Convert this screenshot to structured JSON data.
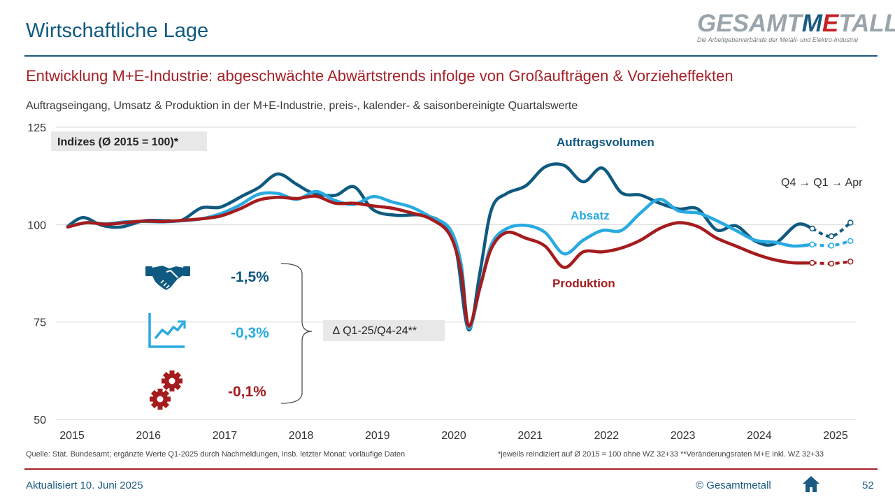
{
  "header": {
    "title": "Wirtschaftliche Lage",
    "logo_part1": "GESAMT",
    "logo_part2": "M",
    "logo_part3": "E",
    "logo_part4": "TALL",
    "logo_tagline": "Die Arbeitgeberverbände der Metall- und Elektro-Industrie"
  },
  "headline": "Entwicklung M+E-Industrie: abgeschwächte Abwärtstrends infolge von Großaufträgen & Vorzieheffekten",
  "subtitle": "Auftragseingang, Umsatz & Produktion in der M+E-Industrie, preis-, kalender- & saisonbereinigte Quartalswerte",
  "colors": {
    "auftrag": "#0f5a80",
    "absatz": "#29aae1",
    "produktion": "#a51c1e"
  },
  "chart_data": {
    "type": "line",
    "title": "",
    "index_label": "Indizes (Ø 2015 = 100)*",
    "ylim": [
      50,
      125
    ],
    "yticks": [
      50,
      75,
      100,
      125
    ],
    "xlim": [
      2015,
      2025.5
    ],
    "xticks": [
      "2015",
      "2016",
      "2017",
      "2018",
      "2019",
      "2020",
      "2021",
      "2022",
      "2023",
      "2024",
      "2025"
    ],
    "annotation_period": "Q4 → Q1 → Apr",
    "series": [
      {
        "name": "Auftragsvolumen",
        "color": "#0f5a80",
        "points": [
          [
            2015,
            99.6
          ],
          [
            2015.2,
            101.8
          ],
          [
            2015.45,
            99.8
          ],
          [
            2015.7,
            99.4
          ],
          [
            2016,
            101.0
          ],
          [
            2016.3,
            101.0
          ],
          [
            2016.5,
            101.2
          ],
          [
            2016.75,
            104.3
          ],
          [
            2017,
            104.5
          ],
          [
            2017.3,
            107.5
          ],
          [
            2017.5,
            109.5
          ],
          [
            2017.75,
            113.0
          ],
          [
            2018,
            110.3
          ],
          [
            2018.2,
            108.2
          ],
          [
            2018.5,
            107.5
          ],
          [
            2018.75,
            109.7
          ],
          [
            2019,
            103.8
          ],
          [
            2019.3,
            102.4
          ],
          [
            2019.6,
            102.5
          ],
          [
            2019.85,
            101.2
          ],
          [
            2020,
            98.0
          ],
          [
            2020.1,
            92.0
          ],
          [
            2020.25,
            73.0
          ],
          [
            2020.4,
            88.0
          ],
          [
            2020.55,
            104.0
          ],
          [
            2020.75,
            108.0
          ],
          [
            2021,
            110.0
          ],
          [
            2021.25,
            114.8
          ],
          [
            2021.5,
            115.2
          ],
          [
            2021.75,
            111.0
          ],
          [
            2022,
            114.5
          ],
          [
            2022.25,
            108.2
          ],
          [
            2022.5,
            107.6
          ],
          [
            2022.75,
            105.5
          ],
          [
            2023,
            104.0
          ],
          [
            2023.25,
            104.0
          ],
          [
            2023.5,
            98.6
          ],
          [
            2023.75,
            99.7
          ],
          [
            2024,
            95.8
          ],
          [
            2024.25,
            95.0
          ],
          [
            2024.55,
            100.0
          ],
          [
            2024.75,
            99.0
          ]
        ],
        "tail": [
          [
            2024.75,
            99.0
          ],
          [
            2025,
            97.0
          ],
          [
            2025.25,
            100.5
          ]
        ]
      },
      {
        "name": "Absatz",
        "color": "#29aae1",
        "points": [
          [
            2015,
            99.5
          ],
          [
            2015.25,
            100.5
          ],
          [
            2015.5,
            100.2
          ],
          [
            2015.75,
            100.7
          ],
          [
            2016,
            100.8
          ],
          [
            2016.25,
            100.7
          ],
          [
            2016.5,
            101.0
          ],
          [
            2016.75,
            101.5
          ],
          [
            2017,
            102.8
          ],
          [
            2017.25,
            105.0
          ],
          [
            2017.5,
            107.8
          ],
          [
            2017.75,
            108.0
          ],
          [
            2018,
            106.5
          ],
          [
            2018.25,
            108.5
          ],
          [
            2018.5,
            106.2
          ],
          [
            2018.75,
            105.2
          ],
          [
            2019,
            107.2
          ],
          [
            2019.25,
            105.8
          ],
          [
            2019.5,
            104.5
          ],
          [
            2019.75,
            102.0
          ],
          [
            2020,
            99.0
          ],
          [
            2020.15,
            90.0
          ],
          [
            2020.25,
            73.5
          ],
          [
            2020.4,
            84.0
          ],
          [
            2020.55,
            95.0
          ],
          [
            2020.75,
            99.0
          ],
          [
            2021,
            99.8
          ],
          [
            2021.25,
            98.0
          ],
          [
            2021.5,
            92.5
          ],
          [
            2021.75,
            96.0
          ],
          [
            2022,
            98.5
          ],
          [
            2022.25,
            98.5
          ],
          [
            2022.5,
            103.0
          ],
          [
            2022.75,
            106.5
          ],
          [
            2023,
            103.5
          ],
          [
            2023.25,
            103.0
          ],
          [
            2023.5,
            101.0
          ],
          [
            2023.75,
            98.5
          ],
          [
            2024,
            96.0
          ],
          [
            2024.25,
            95.5
          ],
          [
            2024.5,
            94.5
          ],
          [
            2024.75,
            94.9
          ]
        ],
        "tail": [
          [
            2024.75,
            94.9
          ],
          [
            2025,
            94.6
          ],
          [
            2025.25,
            95.8
          ]
        ]
      },
      {
        "name": "Produktion",
        "color": "#a51c1e",
        "points": [
          [
            2015,
            99.4
          ],
          [
            2015.25,
            100.5
          ],
          [
            2015.5,
            100.1
          ],
          [
            2015.75,
            100.5
          ],
          [
            2016,
            100.9
          ],
          [
            2016.25,
            100.8
          ],
          [
            2016.5,
            101.1
          ],
          [
            2016.75,
            101.5
          ],
          [
            2017,
            102.2
          ],
          [
            2017.25,
            104.0
          ],
          [
            2017.5,
            106.3
          ],
          [
            2017.75,
            107.0
          ],
          [
            2018,
            106.7
          ],
          [
            2018.25,
            107.3
          ],
          [
            2018.5,
            105.5
          ],
          [
            2018.75,
            105.5
          ],
          [
            2019,
            104.8
          ],
          [
            2019.25,
            104.2
          ],
          [
            2019.5,
            103.0
          ],
          [
            2019.75,
            101.5
          ],
          [
            2020,
            97.5
          ],
          [
            2020.15,
            88.0
          ],
          [
            2020.25,
            74.0
          ],
          [
            2020.4,
            84.0
          ],
          [
            2020.55,
            94.0
          ],
          [
            2020.75,
            98.0
          ],
          [
            2021,
            96.5
          ],
          [
            2021.25,
            94.5
          ],
          [
            2021.5,
            89.0
          ],
          [
            2021.75,
            93.0
          ],
          [
            2022,
            93.0
          ],
          [
            2022.25,
            94.0
          ],
          [
            2022.5,
            96.0
          ],
          [
            2022.75,
            99.0
          ],
          [
            2023,
            100.5
          ],
          [
            2023.25,
            99.5
          ],
          [
            2023.5,
            96.5
          ],
          [
            2023.75,
            94.5
          ],
          [
            2024,
            92.5
          ],
          [
            2024.25,
            91.0
          ],
          [
            2024.5,
            90.2
          ],
          [
            2024.75,
            90.2
          ]
        ],
        "tail": [
          [
            2024.75,
            90.2
          ],
          [
            2025,
            90.0
          ],
          [
            2025.25,
            90.5
          ]
        ]
      }
    ]
  },
  "legend": {
    "auftrag_label": "Auftragsvolumen",
    "absatz_label": "Absatz",
    "produktion_label": "Produktion"
  },
  "changes": {
    "auftrag": "-1,5%",
    "absatz": "-0,3%",
    "produktion": "-0,1%",
    "box_label": "∆ Q1-25/Q4-24**"
  },
  "icons": {
    "auftrag": "handshake-icon",
    "absatz": "trend-chart-icon",
    "produktion": "gears-icon",
    "home": "home-icon"
  },
  "source": "Quelle: Stat. Bundesamt; ergänzte Werte Q1-2025 durch Nachmeldungen, insb. letzter Monat: vorläufige Daten",
  "footnote": "*jeweils reindiziert auf Ø 2015 = 100 ohne WZ 32+33  **Veränderungsraten M+E inkl. WZ 32+33",
  "footer": {
    "updated": "Aktualisiert 10. Juni 2025",
    "copyright": "© Gesamtmetall",
    "page": "52"
  }
}
